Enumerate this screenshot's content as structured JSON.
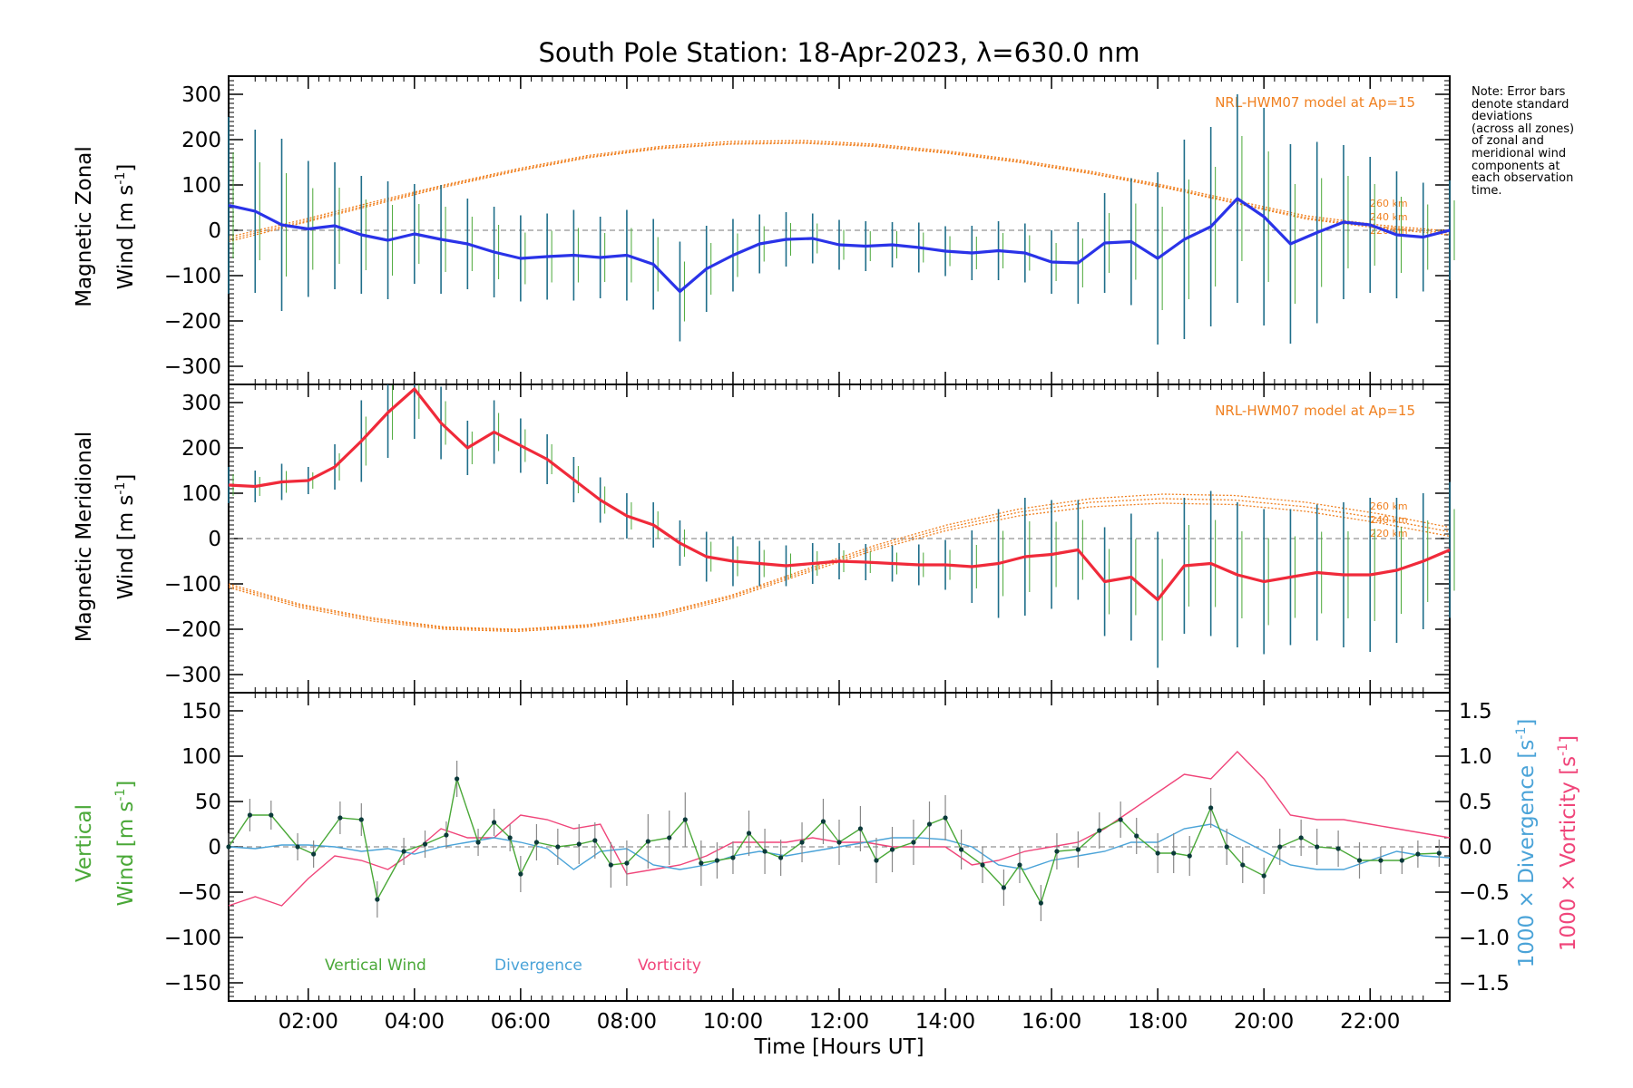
{
  "chart_data": {
    "type": "line",
    "title": "South Pole Station: 18-Apr-2023, λ=630.0 nm",
    "xlabel": "Time [Hours UT]",
    "xlim": [
      0.5,
      23.5
    ],
    "x_ticks": [
      2,
      4,
      6,
      8,
      10,
      12,
      14,
      16,
      18,
      20,
      22
    ],
    "x_tick_labels": [
      "02:00",
      "04:00",
      "06:00",
      "08:00",
      "10:00",
      "12:00",
      "14:00",
      "16:00",
      "18:00",
      "20:00",
      "22:00"
    ],
    "note_lines": [
      "Note: Error bars",
      "denote standard",
      "deviations",
      "(across all zones)",
      "of zonal and",
      "meridional wind",
      "components at",
      "each observation",
      "time."
    ],
    "colors": {
      "zonal": "#2a33e8",
      "meridional": "#f02a3a",
      "model": "#f08020",
      "vertical": "#4aa838",
      "divergence": "#4aa3d8",
      "vorticity": "#f0457a",
      "errorbar": "#1f6e8a"
    },
    "panels": [
      {
        "id": "zonal",
        "ylabel_line1": "Magnetic Zonal",
        "ylabel_line2": "Wind [m s",
        "ylabel_sup": "-1",
        "ylabel_close": "]",
        "ylim": [
          -340,
          340
        ],
        "yticks": [
          -300,
          -200,
          -100,
          0,
          100,
          200,
          300
        ],
        "ytick_labels": [
          "−300",
          "−200",
          "−100",
          "0",
          "100",
          "200",
          "300"
        ],
        "model_label": "NRL-HWM07 model at Ap=15",
        "model_height_labels": [
          "260 km",
          "240 km",
          "220 km"
        ],
        "series": {
          "x": [
            0.5,
            1.0,
            1.5,
            2.0,
            2.5,
            3.0,
            3.5,
            4.0,
            4.5,
            5.0,
            5.5,
            6.0,
            6.5,
            7.0,
            7.5,
            8.0,
            8.5,
            9.0,
            9.5,
            10.0,
            10.5,
            11.0,
            11.5,
            12.0,
            12.5,
            13.0,
            13.5,
            14.0,
            14.5,
            15.0,
            15.5,
            16.0,
            16.5,
            17.0,
            17.5,
            18.0,
            18.5,
            19.0,
            19.5,
            20.0,
            20.5,
            21.0,
            21.5,
            22.0,
            22.5,
            23.0,
            23.5
          ],
          "values": [
            55,
            42,
            12,
            3,
            10,
            -10,
            -22,
            -8,
            -20,
            -30,
            -48,
            -62,
            -58,
            -55,
            -60,
            -55,
            -75,
            -135,
            -85,
            -55,
            -30,
            -20,
            -18,
            -32,
            -35,
            -32,
            -38,
            -46,
            -50,
            -45,
            -50,
            -70,
            -72,
            -28,
            -25,
            -62,
            -20,
            8,
            70,
            30,
            -30,
            -5,
            18,
            12,
            -10,
            -15,
            0
          ],
          "errors": [
            195,
            180,
            190,
            150,
            140,
            130,
            130,
            110,
            120,
            100,
            100,
            95,
            95,
            100,
            90,
            100,
            100,
            110,
            95,
            80,
            65,
            60,
            55,
            55,
            55,
            50,
            55,
            55,
            60,
            65,
            65,
            70,
            90,
            110,
            140,
            190,
            220,
            220,
            230,
            240,
            220,
            200,
            170,
            150,
            140,
            120,
            110
          ]
        },
        "model_curves": [
          {
            "label": "260 km",
            "values": [
              -25,
              15,
              55,
              95,
              130,
              160,
              180,
              190,
              192,
              185,
              170,
              150,
              125,
              95,
              60,
              25,
              5,
              -10
            ]
          },
          {
            "label": "240 km",
            "values": [
              -20,
              18,
              58,
              98,
              132,
              162,
              182,
              192,
              194,
              187,
              172,
              152,
              127,
              97,
              62,
              28,
              8,
              -6
            ]
          },
          {
            "label": "220 km",
            "values": [
              -15,
              22,
              62,
              100,
              135,
              165,
              185,
              196,
              198,
              190,
              175,
              155,
              130,
              100,
              66,
              32,
              12,
              -2
            ]
          }
        ]
      },
      {
        "id": "meridional",
        "ylabel_line1": "Magnetic Meridional",
        "ylabel_line2": "Wind [m s",
        "ylabel_sup": "-1",
        "ylabel_close": "]",
        "ylim": [
          -340,
          340
        ],
        "yticks": [
          -300,
          -200,
          -100,
          0,
          100,
          200,
          300
        ],
        "ytick_labels": [
          "−300",
          "−200",
          "−100",
          "0",
          "100",
          "200",
          "300"
        ],
        "model_label": "NRL-HWM07 model at Ap=15",
        "model_height_labels": [
          "260 km",
          "240 km",
          "220 km"
        ],
        "series": {
          "x": [
            0.5,
            1.0,
            1.5,
            2.0,
            2.5,
            3.0,
            3.5,
            4.0,
            4.5,
            5.0,
            5.5,
            6.0,
            6.5,
            7.0,
            7.5,
            8.0,
            8.5,
            9.0,
            9.5,
            10.0,
            10.5,
            11.0,
            11.5,
            12.0,
            12.5,
            13.0,
            13.5,
            14.0,
            14.5,
            15.0,
            15.5,
            16.0,
            16.5,
            17.0,
            17.5,
            18.0,
            18.5,
            19.0,
            19.5,
            20.0,
            20.5,
            21.0,
            21.5,
            22.0,
            22.5,
            23.0,
            23.5
          ],
          "values": [
            118,
            115,
            125,
            128,
            158,
            215,
            278,
            330,
            255,
            200,
            235,
            205,
            175,
            130,
            85,
            50,
            30,
            -10,
            -40,
            -50,
            -55,
            -60,
            -55,
            -50,
            -52,
            -55,
            -58,
            -58,
            -62,
            -55,
            -40,
            -35,
            -25,
            -95,
            -85,
            -135,
            -60,
            -55,
            -80,
            -95,
            -85,
            -75,
            -80,
            -80,
            -70,
            -50,
            -25
          ],
          "errors": [
            40,
            35,
            40,
            30,
            50,
            90,
            100,
            110,
            80,
            60,
            70,
            60,
            55,
            50,
            50,
            50,
            50,
            50,
            55,
            55,
            50,
            45,
            45,
            40,
            40,
            40,
            45,
            55,
            80,
            120,
            130,
            120,
            110,
            120,
            140,
            150,
            150,
            160,
            160,
            160,
            150,
            150,
            160,
            170,
            160,
            150,
            150
          ]
        },
        "model_curves": [
          {
            "label": "260 km",
            "values": [
              -100,
              -145,
              -175,
              -195,
              -200,
              -190,
              -165,
              -125,
              -70,
              -15,
              30,
              65,
              88,
              98,
              95,
              80,
              55,
              25
            ]
          },
          {
            "label": "240 km",
            "values": [
              -104,
              -148,
              -178,
              -197,
              -202,
              -192,
              -168,
              -128,
              -74,
              -20,
              24,
              58,
              80,
              88,
              85,
              70,
              45,
              15
            ]
          },
          {
            "label": "220 km",
            "values": [
              -108,
              -152,
              -182,
              -200,
              -205,
              -195,
              -172,
              -132,
              -78,
              -25,
              18,
              50,
              70,
              78,
              75,
              60,
              35,
              5
            ]
          }
        ]
      },
      {
        "id": "vertical",
        "ylabel_line1": "Vertical",
        "ylabel_line2": "Wind [m s",
        "ylabel_sup": "-1",
        "ylabel_close": "]",
        "ylim": [
          -170,
          170
        ],
        "yticks": [
          -150,
          -100,
          -50,
          0,
          50,
          100,
          150
        ],
        "ytick_labels": [
          "−150",
          "−100",
          "−50",
          "0",
          "50",
          "100",
          "150"
        ],
        "right_ylim": [
          -1.7,
          1.7
        ],
        "right_yticks": [
          -1.5,
          -1.0,
          -0.5,
          0.0,
          0.5,
          1.0,
          1.5
        ],
        "right_ytick_labels": [
          "−1.5",
          "−1.0",
          "−0.5",
          "0.0",
          "0.5",
          "1.0",
          "1.5"
        ],
        "right_label_div": "1000 × Divergence [s",
        "right_label_vor": "1000 × Vorticity [s",
        "right_label_sup": "-1",
        "right_label_close": "]",
        "legend": [
          "Vertical Wind",
          "Divergence",
          "Vorticity"
        ],
        "vertical_wind": {
          "x": [
            0.5,
            0.9,
            1.3,
            1.8,
            2.1,
            2.6,
            3.0,
            3.3,
            3.8,
            4.2,
            4.6,
            4.8,
            5.2,
            5.5,
            5.8,
            6.0,
            6.3,
            6.7,
            7.1,
            7.4,
            7.7,
            8.0,
            8.4,
            8.8,
            9.1,
            9.4,
            9.7,
            10.0,
            10.3,
            10.6,
            10.9,
            11.3,
            11.7,
            12.0,
            12.4,
            12.7,
            13.0,
            13.4,
            13.7,
            14.0,
            14.3,
            14.7,
            15.1,
            15.4,
            15.8,
            16.1,
            16.5,
            16.9,
            17.3,
            17.6,
            18.0,
            18.3,
            18.6,
            19.0,
            19.3,
            19.6,
            20.0,
            20.3,
            20.7,
            21.0,
            21.4,
            21.8,
            22.2,
            22.6,
            22.9,
            23.3
          ],
          "values": [
            0,
            35,
            35,
            0,
            -8,
            32,
            30,
            -58,
            -5,
            3,
            13,
            75,
            5,
            27,
            10,
            -30,
            5,
            0,
            3,
            7,
            -20,
            -18,
            6,
            10,
            30,
            -18,
            -15,
            -12,
            15,
            -5,
            -12,
            5,
            28,
            5,
            20,
            -15,
            -3,
            5,
            25,
            32,
            -3,
            -20,
            -45,
            -20,
            -62,
            -5,
            -3,
            18,
            30,
            12,
            -7,
            -7,
            -10,
            43,
            0,
            -20,
            -32,
            0,
            10,
            0,
            -2,
            -15,
            -15,
            -15,
            -8,
            -7
          ],
          "errors": [
            15,
            18,
            16,
            15,
            15,
            18,
            18,
            20,
            15,
            15,
            15,
            20,
            15,
            15,
            15,
            20,
            20,
            20,
            22,
            20,
            25,
            25,
            30,
            30,
            30,
            25,
            20,
            18,
            25,
            25,
            20,
            22,
            25,
            25,
            25,
            25,
            25,
            25,
            25,
            25,
            22,
            20,
            20,
            20,
            20,
            20,
            20,
            20,
            20,
            20,
            22,
            22,
            22,
            22,
            20,
            20,
            20,
            20,
            20,
            20,
            20,
            20,
            15,
            15,
            15,
            15
          ]
        },
        "divergence": {
          "x": [
            0.5,
            1.0,
            1.5,
            2.0,
            2.5,
            3.0,
            3.5,
            4.0,
            4.5,
            5.0,
            5.5,
            6.0,
            6.5,
            7.0,
            7.5,
            8.0,
            8.5,
            9.0,
            9.5,
            10.0,
            10.5,
            11.0,
            11.5,
            12.0,
            12.5,
            13.0,
            13.5,
            14.0,
            14.5,
            15.0,
            15.5,
            16.0,
            16.5,
            17.0,
            17.5,
            18.0,
            18.5,
            19.0,
            19.5,
            20.0,
            20.5,
            21.0,
            21.5,
            22.0,
            22.5,
            23.0,
            23.5
          ],
          "values": [
            0.0,
            -0.02,
            0.02,
            0.02,
            0.0,
            -0.05,
            -0.02,
            -0.08,
            0.0,
            0.05,
            0.1,
            0.05,
            -0.02,
            -0.25,
            -0.05,
            -0.02,
            -0.2,
            -0.25,
            -0.2,
            -0.1,
            -0.05,
            -0.1,
            -0.05,
            0.0,
            0.05,
            0.1,
            0.1,
            0.08,
            0.0,
            -0.2,
            -0.25,
            -0.15,
            -0.1,
            -0.05,
            0.05,
            0.05,
            0.2,
            0.25,
            0.1,
            -0.05,
            -0.2,
            -0.25,
            -0.25,
            -0.15,
            -0.05,
            -0.1,
            -0.12
          ]
        },
        "vorticity": {
          "x": [
            0.5,
            1.0,
            1.5,
            2.0,
            2.5,
            3.0,
            3.5,
            4.0,
            4.5,
            5.0,
            5.5,
            6.0,
            6.5,
            7.0,
            7.5,
            8.0,
            8.5,
            9.0,
            9.5,
            10.0,
            10.5,
            11.0,
            11.5,
            12.0,
            12.5,
            13.0,
            13.5,
            14.0,
            14.5,
            15.0,
            15.5,
            16.0,
            16.5,
            17.0,
            17.5,
            18.0,
            18.5,
            19.0,
            19.5,
            20.0,
            20.5,
            21.0,
            21.5,
            22.0,
            22.5,
            23.0,
            23.5
          ],
          "values": [
            -0.65,
            -0.55,
            -0.65,
            -0.35,
            -0.1,
            -0.15,
            -0.25,
            -0.05,
            0.2,
            0.1,
            0.1,
            0.35,
            0.3,
            0.2,
            0.25,
            -0.3,
            -0.25,
            -0.2,
            -0.1,
            0.05,
            0.05,
            0.05,
            0.1,
            0.05,
            0.05,
            0.0,
            0.0,
            0.0,
            -0.2,
            -0.15,
            -0.05,
            0.0,
            0.05,
            0.2,
            0.4,
            0.6,
            0.8,
            0.75,
            1.05,
            0.75,
            0.35,
            0.3,
            0.3,
            0.25,
            0.2,
            0.15,
            0.1
          ]
        }
      }
    ]
  }
}
